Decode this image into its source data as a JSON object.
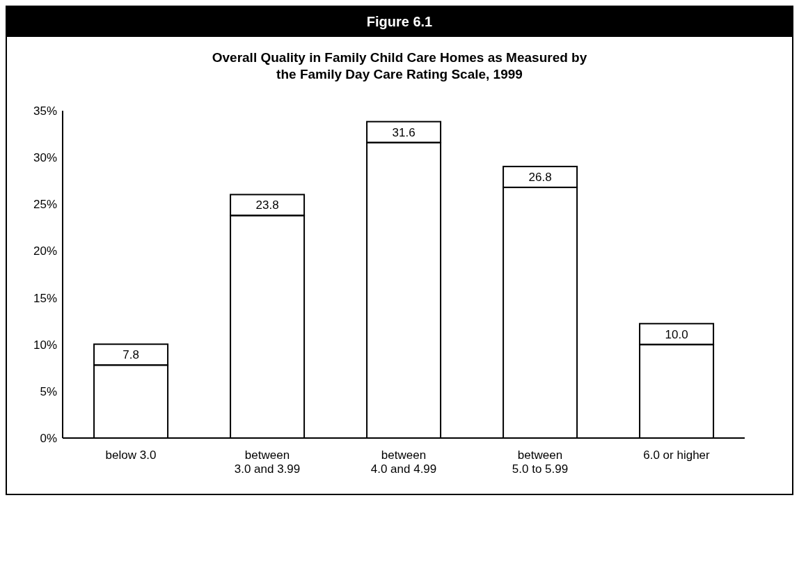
{
  "chart_data": {
    "type": "bar",
    "title": "Figure 6.1",
    "subtitle": "Overall Quality in Family Child Care Homes as Measured by the Family Day Care Rating Scale, 1999",
    "categories": [
      "below 3.0",
      "between\n3.0 and 3.99",
      "between\n4.0 and 4.99",
      "between\n5.0 to 5.99",
      "6.0 or higher"
    ],
    "values": [
      7.8,
      23.8,
      31.6,
      26.8,
      10.0
    ],
    "value_labels": [
      "7.8",
      "23.8",
      "31.6",
      "26.8",
      "10.0"
    ],
    "color": "#ffffff",
    "ylim": [
      0,
      35
    ],
    "yticks": [
      {
        "value": 0,
        "label": "0%"
      },
      {
        "value": 5,
        "label": "5%"
      },
      {
        "value": 10,
        "label": "10%"
      },
      {
        "value": 15,
        "label": "15%"
      },
      {
        "value": 20,
        "label": "20%"
      },
      {
        "value": 25,
        "label": "25%"
      },
      {
        "value": 30,
        "label": "30%"
      },
      {
        "value": 35,
        "label": "35%"
      }
    ],
    "grid": false,
    "legend": false
  }
}
